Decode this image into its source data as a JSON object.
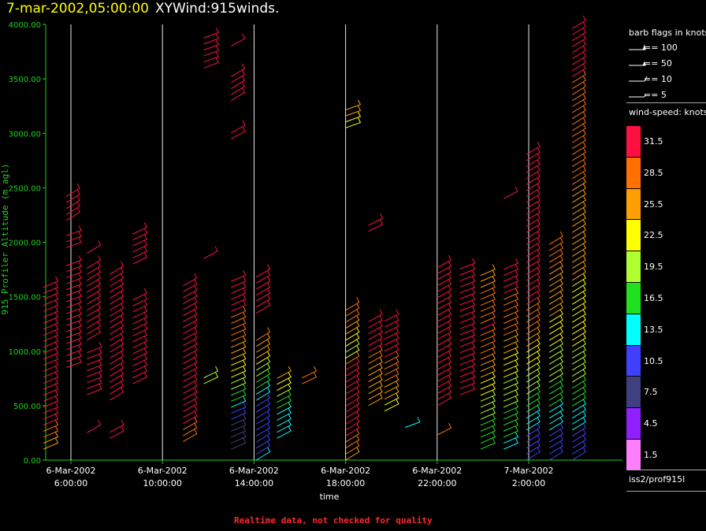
{
  "header": {
    "date": "7-mar-2002,05:00:00",
    "name": "XYWind:915winds."
  },
  "footer": "Realtime data, not checked for quality",
  "colors": {
    "axis_green": "#20d020",
    "date_yellow": "#ffff00",
    "footer_red": "#ff2a2a"
  },
  "chart_data": {
    "type": "scatter",
    "subtype": "wind-barb time-height profile",
    "ylabel": "915 Profiler Altitude (m agl)",
    "xlabel": "time",
    "ylim": [
      0,
      4000
    ],
    "y_ticks": [
      "0.00",
      "500.00",
      "1000.00",
      "1500.00",
      "2000.00",
      "2500.00",
      "3000.00",
      "3500.00",
      "4000.00"
    ],
    "x_ticks": [
      {
        "date": "6-Mar-2002",
        "time": "6:00:00"
      },
      {
        "date": "6-Mar-2002",
        "time": "10:00:00"
      },
      {
        "date": "6-Mar-2002",
        "time": "14:00:00"
      },
      {
        "date": "6-Mar-2002",
        "time": "18:00:00"
      },
      {
        "date": "6-Mar-2002",
        "time": "22:00:00"
      },
      {
        "date": "7-Mar-2002",
        "time": "2:00:00"
      }
    ],
    "grid": "vertical lines at x ticks",
    "legend_placement": "right",
    "barb_legend": {
      "title": "barb flags in knots",
      "entries": [
        "== 100",
        "== 50",
        "== 10",
        "== 5"
      ]
    },
    "speed_legend": {
      "title": "wind-speed: knots",
      "entries": [
        {
          "label": "31.5",
          "color": "#ff1040"
        },
        {
          "label": "28.5",
          "color": "#ff7000"
        },
        {
          "label": "25.5",
          "color": "#ffa000"
        },
        {
          "label": "22.5",
          "color": "#ffff00"
        },
        {
          "label": "19.5",
          "color": "#b0ff30"
        },
        {
          "label": "16.5",
          "color": "#20e020"
        },
        {
          "label": "13.5",
          "color": "#00ffff"
        },
        {
          "label": "10.5",
          "color": "#4040ff"
        },
        {
          "label": "7.5",
          "color": "#404080"
        },
        {
          "label": "4.5",
          "color": "#9020ff"
        },
        {
          "label": "1.5",
          "color": "#ff80ff"
        }
      ]
    },
    "station": "iss2/prof915l",
    "profiles": [
      {
        "hour": 4.8,
        "heights": [
          0,
          3000
        ],
        "speed_profile": [
          [
            0,
            20
          ],
          [
            200,
            28
          ],
          [
            400,
            32
          ],
          [
            3000,
            32
          ]
        ],
        "blocks": [
          [
            100,
            1600
          ]
        ]
      },
      {
        "hour": 5.8,
        "blocks": [
          [
            850,
            1800
          ],
          [
            1950,
            2100
          ],
          [
            2200,
            2450
          ]
        ],
        "speed_profile": [
          [
            0,
            32
          ],
          [
            4000,
            32
          ]
        ]
      },
      {
        "hour": 6.7,
        "blocks": [
          [
            600,
            1000
          ],
          [
            1100,
            1800
          ],
          [
            1900,
            1950
          ],
          [
            250,
            280
          ]
        ],
        "speed_profile": [
          [
            0,
            32
          ],
          [
            4000,
            32
          ]
        ]
      },
      {
        "hour": 7.7,
        "blocks": [
          [
            200,
            280
          ],
          [
            550,
            1750
          ]
        ],
        "speed_profile": [
          [
            0,
            32
          ],
          [
            4000,
            32
          ]
        ]
      },
      {
        "hour": 8.7,
        "blocks": [
          [
            700,
            1500
          ],
          [
            1800,
            2100
          ]
        ],
        "speed_profile": [
          [
            0,
            32
          ],
          [
            4000,
            32
          ]
        ]
      },
      {
        "hour": 10.9,
        "blocks": [
          [
            170,
            450
          ],
          [
            500,
            1600
          ]
        ],
        "speed_profile": [
          [
            0,
            23
          ],
          [
            200,
            28
          ],
          [
            450,
            32
          ],
          [
            4000,
            32
          ]
        ]
      },
      {
        "hour": 11.8,
        "blocks": [
          [
            700,
            800
          ],
          [
            1850,
            1900
          ],
          [
            3600,
            3900
          ]
        ],
        "speed_profile": [
          [
            0,
            19
          ],
          [
            800,
            18
          ],
          [
            1000,
            32
          ],
          [
            4000,
            32
          ]
        ]
      },
      {
        "hour": 13.0,
        "blocks": [
          [
            100,
            1650
          ],
          [
            2950,
            3050
          ],
          [
            3300,
            3550
          ],
          [
            3800,
            3850
          ]
        ],
        "speed_profile": [
          [
            0,
            8
          ],
          [
            300,
            7
          ],
          [
            600,
            18
          ],
          [
            900,
            24
          ],
          [
            1100,
            28
          ],
          [
            1600,
            32
          ],
          [
            4000,
            32
          ]
        ]
      },
      {
        "hour": 14.1,
        "blocks": [
          [
            0,
            1150
          ],
          [
            1350,
            1700
          ]
        ],
        "speed_profile": [
          [
            0,
            12
          ],
          [
            500,
            11
          ],
          [
            800,
            20
          ],
          [
            1000,
            26
          ],
          [
            1150,
            29
          ],
          [
            1350,
            32
          ],
          [
            4000,
            32
          ]
        ]
      },
      {
        "hour": 15.0,
        "blocks": [
          [
            200,
            800
          ]
        ],
        "speed_profile": [
          [
            0,
            10
          ],
          [
            400,
            14
          ],
          [
            600,
            20
          ],
          [
            800,
            26
          ]
        ]
      },
      {
        "hour": 16.1,
        "blocks": [
          [
            700,
            800
          ]
        ],
        "speed_profile": [
          [
            0,
            28
          ],
          [
            4000,
            28
          ]
        ]
      },
      {
        "hour": 18.0,
        "blocks": [
          [
            0,
            1400
          ],
          [
            3050,
            3250
          ]
        ],
        "speed_profile": [
          [
            0,
            26
          ],
          [
            300,
            32
          ],
          [
            800,
            32
          ],
          [
            1000,
            20
          ],
          [
            1300,
            28
          ],
          [
            3050,
            22
          ],
          [
            3250,
            28
          ]
        ]
      },
      {
        "hour": 19.0,
        "blocks": [
          [
            500,
            1300
          ],
          [
            2100,
            2200
          ]
        ],
        "speed_profile": [
          [
            0,
            25
          ],
          [
            800,
            25
          ],
          [
            1000,
            32
          ],
          [
            4000,
            32
          ]
        ]
      },
      {
        "hour": 19.7,
        "blocks": [
          [
            450,
            1300
          ]
        ],
        "speed_profile": [
          [
            0,
            17
          ],
          [
            600,
            25
          ],
          [
            900,
            30
          ],
          [
            1300,
            32
          ]
        ]
      },
      {
        "hour": 20.6,
        "blocks": [
          [
            300,
            350
          ]
        ],
        "speed_profile": [
          [
            0,
            13
          ],
          [
            400,
            13
          ]
        ]
      },
      {
        "hour": 22.0,
        "blocks": [
          [
            230,
            260
          ],
          [
            500,
            1800
          ]
        ],
        "speed_profile": [
          [
            0,
            27
          ],
          [
            400,
            32
          ],
          [
            4000,
            32
          ]
        ]
      },
      {
        "hour": 23.0,
        "blocks": [
          [
            600,
            1800
          ]
        ],
        "speed_profile": [
          [
            0,
            30
          ],
          [
            1800,
            32
          ]
        ]
      },
      {
        "hour": 23.9,
        "blocks": [
          [
            100,
            1700
          ]
        ],
        "speed_profile": [
          [
            0,
            16
          ],
          [
            500,
            19
          ],
          [
            800,
            26
          ],
          [
            1200,
            30
          ],
          [
            1700,
            26
          ]
        ]
      },
      {
        "hour": 24.9,
        "blocks": [
          [
            100,
            1800
          ],
          [
            2400,
            2450
          ]
        ],
        "speed_profile": [
          [
            0,
            13
          ],
          [
            400,
            17
          ],
          [
            800,
            22
          ],
          [
            1200,
            28
          ],
          [
            1800,
            32
          ],
          [
            4000,
            32
          ]
        ]
      },
      {
        "hour": 25.9,
        "blocks": [
          [
            0,
            2850
          ]
        ],
        "speed_profile": [
          [
            0,
            9
          ],
          [
            300,
            13
          ],
          [
            600,
            18
          ],
          [
            900,
            22
          ],
          [
            1200,
            28
          ],
          [
            1600,
            32
          ],
          [
            4000,
            32
          ]
        ]
      },
      {
        "hour": 26.9,
        "blocks": [
          [
            0,
            2000
          ]
        ],
        "speed_profile": [
          [
            0,
            9
          ],
          [
            300,
            13
          ],
          [
            700,
            18
          ],
          [
            1100,
            22
          ],
          [
            1500,
            26
          ],
          [
            2000,
            28
          ]
        ]
      },
      {
        "hour": 27.9,
        "blocks": [
          [
            0,
            4000
          ]
        ],
        "speed_profile": [
          [
            0,
            9
          ],
          [
            300,
            13
          ],
          [
            600,
            17
          ],
          [
            1000,
            21
          ],
          [
            1600,
            24
          ],
          [
            2500,
            27
          ],
          [
            3500,
            30
          ],
          [
            4000,
            32
          ]
        ]
      }
    ]
  }
}
